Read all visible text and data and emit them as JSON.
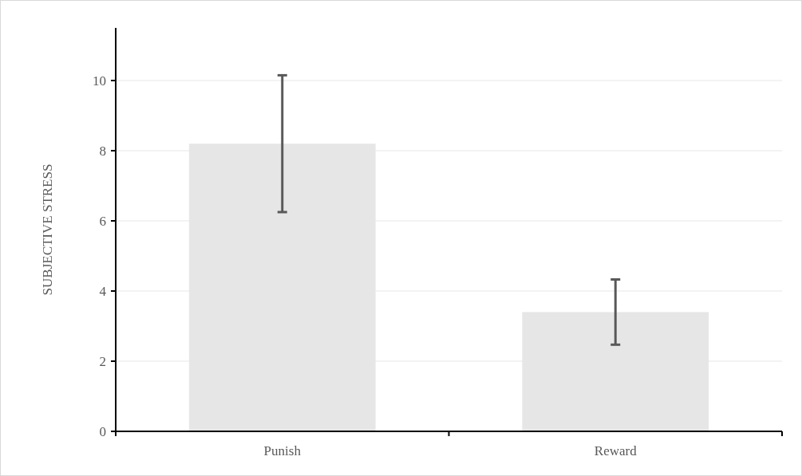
{
  "chart_data": {
    "type": "bar",
    "ylabel": "SUBJECTIVE STRESS",
    "categories": [
      "Punish",
      "Reward"
    ],
    "values": [
      8.2,
      3.4
    ],
    "errors": [
      1.95,
      0.93
    ],
    "color": "#e6e6e6",
    "ylim": [
      0,
      11.5
    ],
    "yticks": [
      0,
      2,
      4,
      6,
      8,
      10
    ],
    "grid": "y"
  }
}
